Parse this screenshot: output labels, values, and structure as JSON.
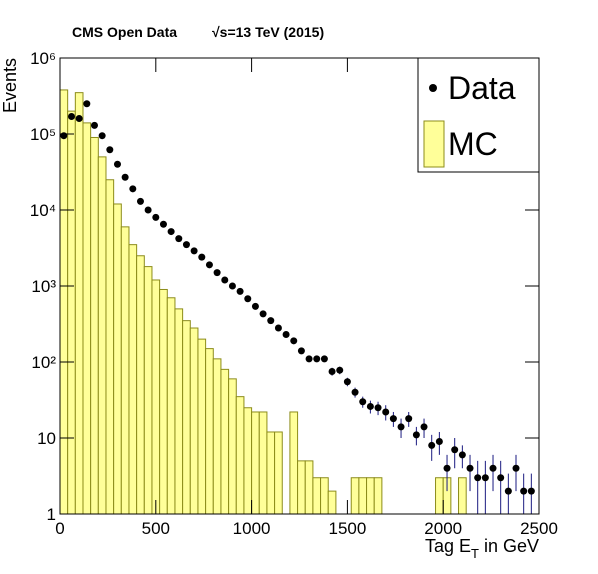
{
  "chart_data": {
    "type": "scatter_hist",
    "title": "CMS Open Data",
    "subtitle": "√s=13 TeV (2015)",
    "x_label": [
      "Tag E",
      "T",
      " in GeV"
    ],
    "y_label": "Events",
    "log_y": true,
    "legend": "top-right",
    "xlim": [
      0,
      2500
    ],
    "xticks": [
      0,
      500,
      1000,
      1500,
      2000,
      2500
    ],
    "ylim": [
      1,
      1000000
    ],
    "yticks": [
      1,
      10,
      {
        "value": 100,
        "label": "10²"
      },
      {
        "value": 1000,
        "label": "10³"
      },
      {
        "value": 10000,
        "label": "10⁴"
      },
      {
        "value": 100000,
        "label": "10⁵"
      },
      {
        "value": 1000000,
        "label": "10⁶"
      }
    ],
    "series": [
      {
        "name": "Data",
        "kind": "points",
        "color": "#000000",
        "error_color": "#1a1a80",
        "x": [
          20,
          60,
          100,
          140,
          180,
          220,
          260,
          300,
          340,
          380,
          420,
          460,
          500,
          540,
          580,
          620,
          660,
          700,
          740,
          780,
          820,
          860,
          900,
          940,
          980,
          1020,
          1060,
          1100,
          1140,
          1180,
          1220,
          1260,
          1300,
          1340,
          1380,
          1420,
          1460,
          1500,
          1540,
          1580,
          1620,
          1660,
          1700,
          1740,
          1780,
          1820,
          1860,
          1900,
          1940,
          1980,
          2020,
          2060,
          2100,
          2140,
          2180,
          2220,
          2260,
          2300,
          2340,
          2380,
          2420,
          2460
        ],
        "values": [
          95000,
          170000,
          160000,
          250000,
          130000,
          95000,
          62000,
          40000,
          27000,
          19000,
          13000,
          10000,
          8000,
          6500,
          5200,
          4200,
          3500,
          2900,
          2400,
          1900,
          1500,
          1200,
          1000,
          850,
          680,
          540,
          430,
          350,
          280,
          230,
          190,
          140,
          110,
          110,
          110,
          75,
          78,
          55,
          40,
          30,
          26,
          25,
          22,
          18,
          14,
          18,
          11,
          14,
          8,
          9,
          4,
          7,
          6,
          4,
          3,
          3,
          4,
          3,
          2,
          4,
          2,
          2
        ],
        "errors": [
          308,
          412,
          400,
          500,
          361,
          308,
          249,
          200,
          164,
          138,
          114,
          100,
          89,
          81,
          72,
          65,
          59,
          54,
          49,
          44,
          39,
          35,
          32,
          29,
          26,
          23,
          21,
          19,
          17,
          15,
          14,
          12,
          10,
          10,
          10,
          9,
          9,
          7,
          6,
          5,
          5,
          5,
          5,
          4,
          4,
          4,
          3,
          4,
          3,
          3,
          2,
          3,
          2,
          2,
          2,
          2,
          2,
          2,
          1.4,
          2,
          1.4,
          1.4
        ]
      },
      {
        "name": "MC",
        "kind": "histogram",
        "color": "#ffff99",
        "edge_color": "#8c8c1a",
        "bins": [
          0,
          40,
          80,
          120,
          160,
          200,
          240,
          280,
          320,
          360,
          400,
          440,
          480,
          520,
          560,
          600,
          640,
          680,
          720,
          760,
          800,
          840,
          880,
          920,
          960,
          1000,
          1040,
          1080,
          1120,
          1160,
          1200,
          1240,
          1280,
          1320,
          1360,
          1400,
          1440,
          1480,
          1520,
          1560,
          1600,
          1640,
          1680,
          1720,
          1760,
          1800,
          1840,
          1880,
          1920,
          1960,
          2000,
          2040,
          2080,
          2120,
          2160,
          2200,
          2240,
          2280,
          2320,
          2360,
          2400,
          2440,
          2480
        ],
        "values": [
          380000,
          200000,
          350000,
          140000,
          90000,
          50000,
          25000,
          12000,
          6000,
          3500,
          2500,
          1800,
          1200,
          900,
          700,
          500,
          350,
          280,
          200,
          150,
          110,
          80,
          60,
          35,
          25,
          22,
          22,
          12,
          12,
          1,
          22,
          5,
          5,
          3,
          3,
          2,
          0,
          0,
          3,
          3,
          3,
          3,
          0,
          0,
          0,
          0,
          0,
          0,
          0,
          3,
          3,
          0,
          3,
          0,
          0,
          0,
          0,
          0,
          0,
          0,
          0,
          0
        ]
      }
    ]
  }
}
